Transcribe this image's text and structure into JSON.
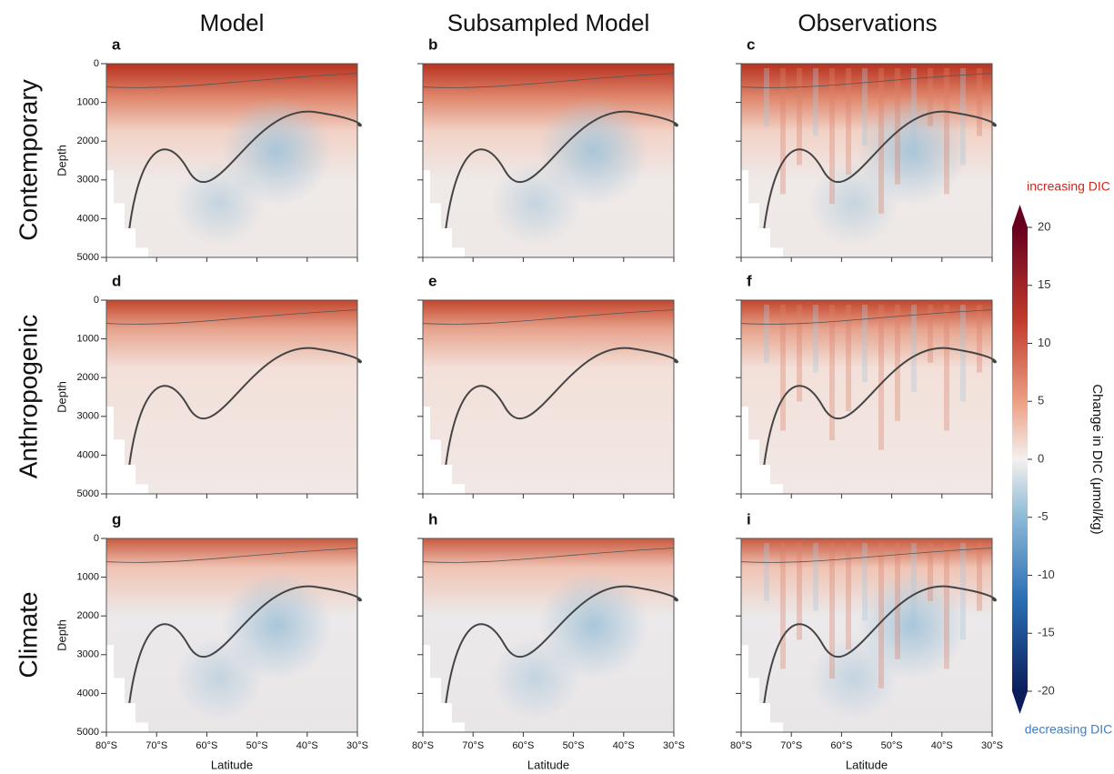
{
  "columns": [
    "Model",
    "Subsampled Model",
    "Observations"
  ],
  "rows": [
    "Contemporary",
    "Anthropogenic",
    "Climate"
  ],
  "panels": [
    "a",
    "b",
    "c",
    "d",
    "e",
    "f",
    "g",
    "h",
    "i"
  ],
  "axes": {
    "ylabel": "Depth",
    "xlabel": "Latitude",
    "ylim": [
      0,
      5000
    ],
    "yticks": [
      0,
      1000,
      2000,
      3000,
      4000,
      5000
    ],
    "xlim": [
      -80,
      -30
    ],
    "xticks": [
      {
        "value": -80,
        "label": "80°S"
      },
      {
        "value": -70,
        "label": "70°S"
      },
      {
        "value": -60,
        "label": "60°S"
      },
      {
        "value": -50,
        "label": "50°S"
      },
      {
        "value": -40,
        "label": "40°S"
      },
      {
        "value": -30,
        "label": "30°S"
      }
    ]
  },
  "colorbar": {
    "label": "Change in DIC (μmol/kg)",
    "lim": [
      -20,
      20
    ],
    "ticks": [
      -20,
      -15,
      -10,
      -5,
      0,
      5,
      10,
      15,
      20
    ],
    "top_note": "increasing DIC",
    "bottom_note": "decreasing DIC"
  }
}
